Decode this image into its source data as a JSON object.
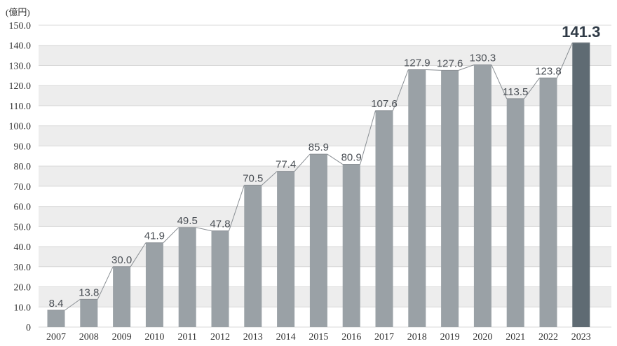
{
  "chart_data": {
    "type": "bar",
    "unit_label": "(億円)",
    "categories": [
      "2007",
      "2008",
      "2009",
      "2010",
      "2011",
      "2012",
      "2013",
      "2014",
      "2015",
      "2016",
      "2017",
      "2018",
      "2019",
      "2020",
      "2021",
      "2022",
      "2023"
    ],
    "values": [
      8.4,
      13.8,
      30.0,
      41.9,
      49.5,
      47.8,
      70.5,
      77.4,
      85.9,
      80.9,
      107.6,
      127.9,
      127.6,
      130.3,
      113.5,
      123.8,
      141.3
    ],
    "value_labels": [
      "8.4",
      "13.8",
      "30.0",
      "41.9",
      "49.5",
      "47.8",
      "70.5",
      "77.4",
      "85.9",
      "80.9",
      "107.6",
      "127.9",
      "127.6",
      "130.3",
      "113.5",
      "123.8",
      "141.3"
    ],
    "y_ticks": [
      "0",
      "10.0",
      "20.0",
      "30.0",
      "40.0",
      "50.0",
      "60.0",
      "70.0",
      "80.0",
      "90.0",
      "100.0",
      "110.0",
      "120.0",
      "130.0",
      "140.0",
      "150.0"
    ],
    "ylim": [
      0,
      150
    ],
    "grid": "alternating horizontal bands",
    "connector_line": true,
    "highlight_category": "2023",
    "colors": {
      "bar": "#9aa1a6",
      "bar_highlight": "#5f6b73",
      "band": "#ededed",
      "grid_line": "#d8d8d8",
      "connector": "#8a8f94"
    }
  }
}
